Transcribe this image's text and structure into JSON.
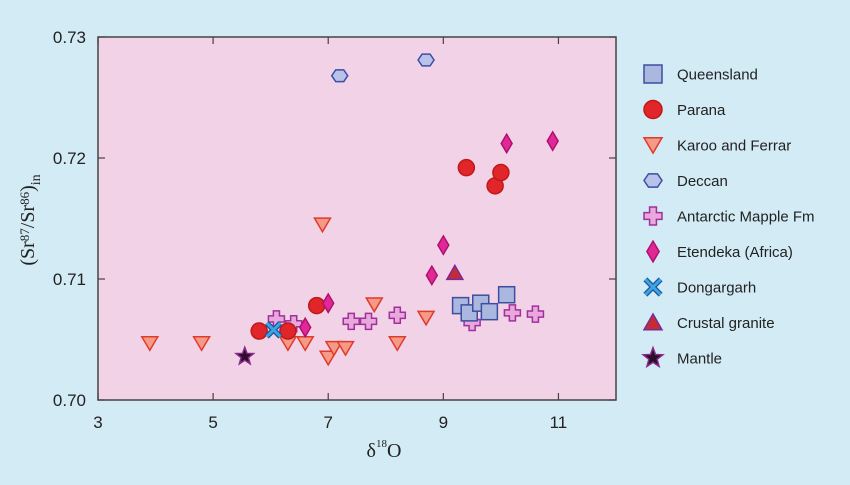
{
  "chart_data": {
    "type": "scatter",
    "title": "",
    "xlabel": {
      "base": "δ",
      "sup": "18",
      "after": "O"
    },
    "ylabel": {
      "open": "(Sr",
      "sup1": "87",
      "mid": "/Sr",
      "sup2": "86",
      "close": ")",
      "sub": "in"
    },
    "xlim": [
      3,
      12
    ],
    "ylim": [
      0.7,
      0.73
    ],
    "x_ticks": [
      3,
      5,
      7,
      9,
      11
    ],
    "y_ticks": [
      0.7,
      0.71,
      0.72,
      0.73
    ],
    "y_tick_labels": [
      "0.70",
      "0.71",
      "0.72",
      "0.73"
    ],
    "grid": false,
    "legend_position": "right",
    "plot_background": "#f2d2e6",
    "series": [
      {
        "name": "Queensland",
        "marker": "square",
        "fill": "#aab8e0",
        "stroke": "#3c4ea0",
        "points": [
          [
            9.3,
            0.7078
          ],
          [
            9.45,
            0.7072
          ],
          [
            9.65,
            0.708
          ],
          [
            9.8,
            0.7073
          ],
          [
            10.1,
            0.7087
          ]
        ]
      },
      {
        "name": "Parana",
        "marker": "circle",
        "fill": "#e0262a",
        "stroke": "#c01818",
        "points": [
          [
            5.8,
            0.7057
          ],
          [
            6.3,
            0.7057
          ],
          [
            6.8,
            0.7078
          ],
          [
            9.4,
            0.7192
          ],
          [
            9.9,
            0.7177
          ],
          [
            10.0,
            0.7188
          ]
        ]
      },
      {
        "name": "Karoo and Ferrar",
        "marker": "triangle-down",
        "fill": "#f59a86",
        "stroke": "#e03a2a",
        "points": [
          [
            3.9,
            0.7047
          ],
          [
            4.8,
            0.7047
          ],
          [
            6.3,
            0.7047
          ],
          [
            6.6,
            0.7047
          ],
          [
            6.9,
            0.7145
          ],
          [
            7.0,
            0.7035
          ],
          [
            7.1,
            0.7043
          ],
          [
            7.3,
            0.7043
          ],
          [
            7.8,
            0.7079
          ],
          [
            8.2,
            0.7047
          ],
          [
            8.7,
            0.7068
          ]
        ]
      },
      {
        "name": "Deccan",
        "marker": "hexagon",
        "fill": "#b8c2ea",
        "stroke": "#3c4ea0",
        "points": [
          [
            7.2,
            0.7268
          ],
          [
            8.7,
            0.7281
          ]
        ]
      },
      {
        "name": "Antarctic Mapple Fm",
        "marker": "plus",
        "fill": "#e8a8dc",
        "stroke": "#a0309a",
        "points": [
          [
            6.1,
            0.7067
          ],
          [
            6.4,
            0.7063
          ],
          [
            7.4,
            0.7065
          ],
          [
            7.7,
            0.7065
          ],
          [
            8.2,
            0.707
          ],
          [
            9.5,
            0.7064
          ],
          [
            10.2,
            0.7072
          ],
          [
            10.6,
            0.7071
          ]
        ]
      },
      {
        "name": "Etendeka (Africa)",
        "marker": "diamond",
        "fill": "#e02896",
        "stroke": "#b01070",
        "points": [
          [
            6.6,
            0.706
          ],
          [
            7.0,
            0.708
          ],
          [
            8.8,
            0.7103
          ],
          [
            9.0,
            0.7128
          ],
          [
            10.1,
            0.7212
          ],
          [
            10.9,
            0.7214
          ]
        ]
      },
      {
        "name": "Dongargarh",
        "marker": "x",
        "fill": "#3fa3e2",
        "stroke": "#1a5aa0",
        "points": [
          [
            6.05,
            0.7058
          ]
        ]
      },
      {
        "name": "Crustal granite",
        "marker": "triangle-up",
        "fill": "#c42c34",
        "stroke": "#7a2a9a",
        "points": [
          [
            9.2,
            0.7105
          ]
        ]
      },
      {
        "name": "Mantle",
        "marker": "star",
        "fill": "#2a0f28",
        "stroke": "#8a2a8a",
        "points": [
          [
            5.55,
            0.7036
          ]
        ]
      }
    ]
  }
}
